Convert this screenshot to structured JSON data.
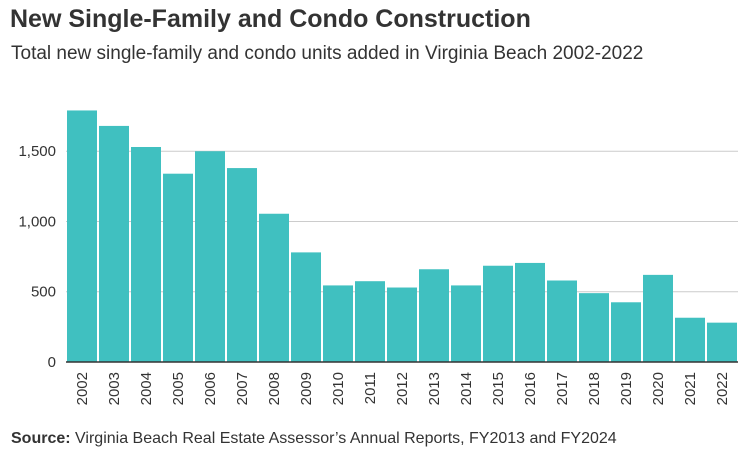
{
  "header": {
    "title": "New Single-Family and Condo Construction",
    "subtitle": "Total new single-family and condo units added in  Virginia Beach 2002-2022"
  },
  "footer": {
    "source_label": "Source:",
    "source_text": " Virginia Beach Real Estate  Assessor’s Annual Reports, FY2013  and FY2024"
  },
  "colors": {
    "bar": "#40c0c0",
    "grid": "#cccccc",
    "axis": "#333333",
    "text": "#333333"
  },
  "chart_data": {
    "type": "bar",
    "categories": [
      "2002",
      "2003",
      "2004",
      "2005",
      "2006",
      "2007",
      "2008",
      "2009",
      "2010",
      "2011",
      "2012",
      "2013",
      "2014",
      "2015",
      "2016",
      "2017",
      "2018",
      "2019",
      "2020",
      "2021",
      "2022"
    ],
    "values": [
      1790,
      1680,
      1530,
      1340,
      1500,
      1380,
      1055,
      780,
      545,
      575,
      530,
      660,
      545,
      685,
      705,
      580,
      490,
      425,
      620,
      315,
      280
    ],
    "title": "New Single-Family and Condo Construction",
    "xlabel": "",
    "ylabel": "",
    "ylim": [
      0,
      1900
    ],
    "yticks": [
      0,
      500,
      1000,
      1500
    ],
    "ytick_labels": [
      "0",
      "500",
      "1,000",
      "1,500"
    ],
    "grid": true,
    "legend": "none"
  }
}
